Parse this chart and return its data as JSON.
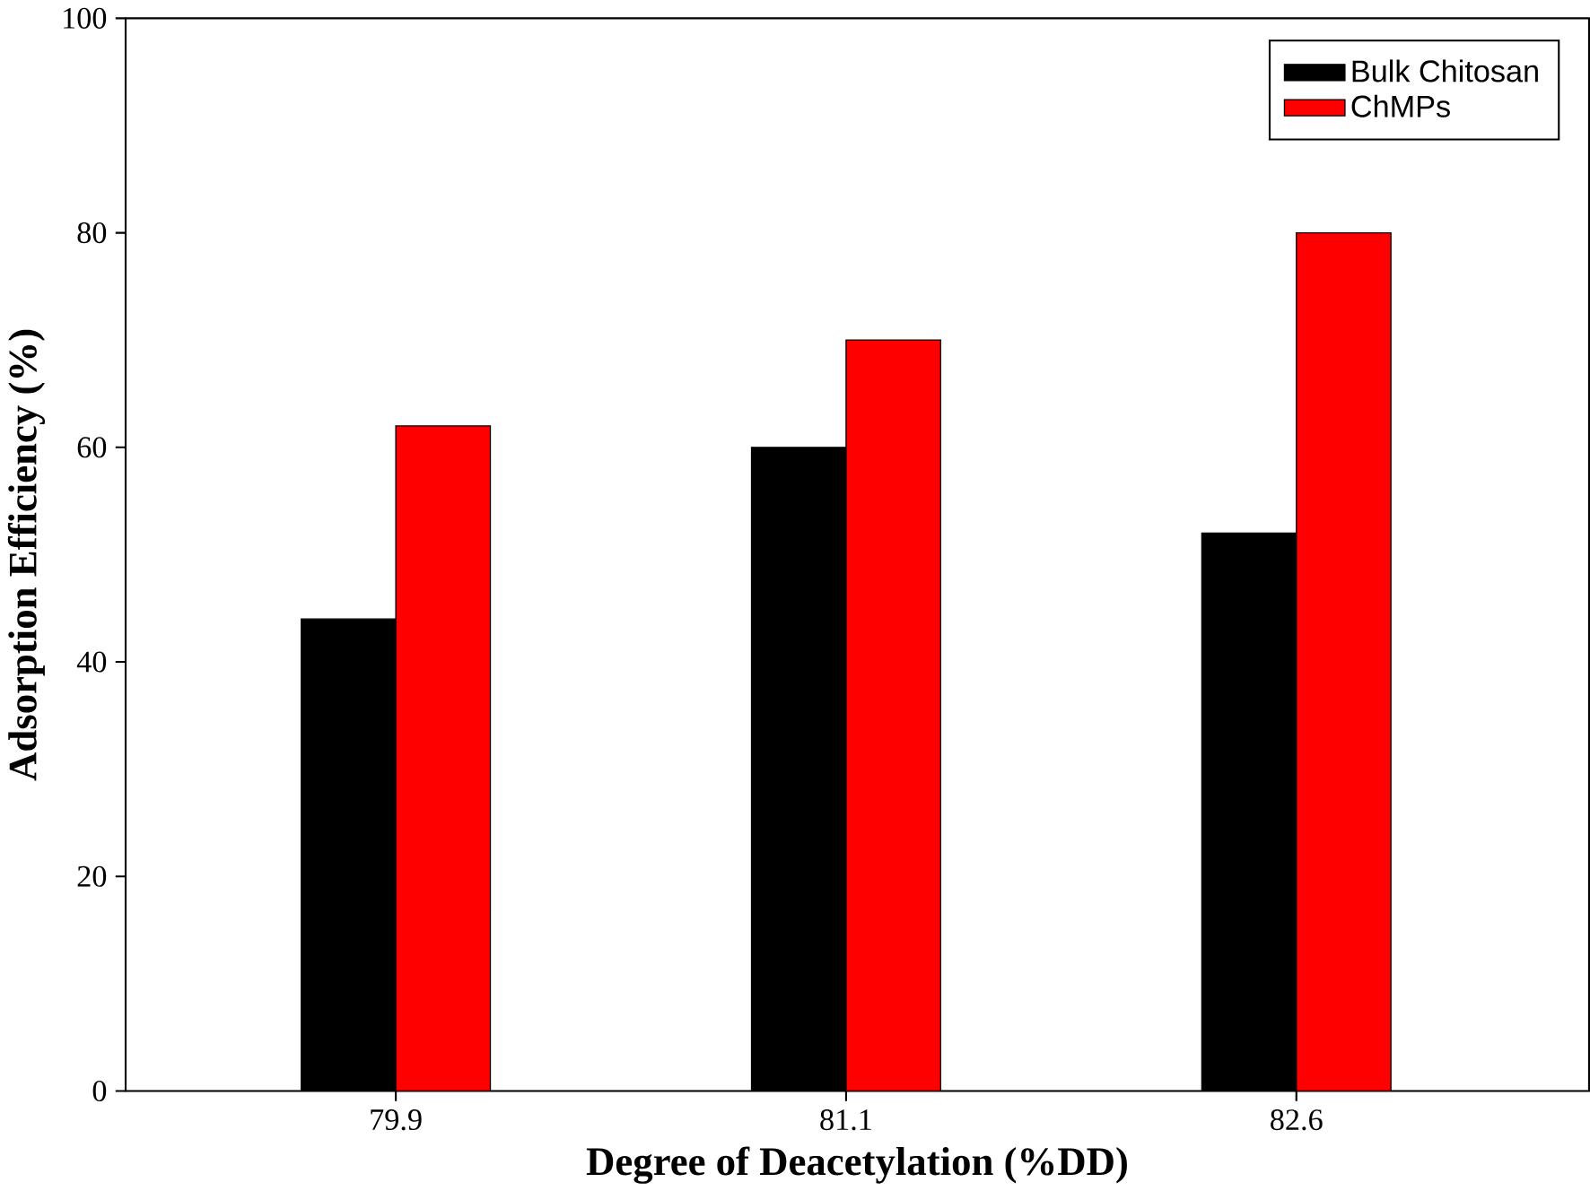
{
  "chart_data": {
    "type": "bar",
    "xlabel": "Degree of Deacetylation (%DD)",
    "ylabel": "Adsorption Efficiency (%)",
    "categories": [
      "79.9",
      "81.1",
      "82.6"
    ],
    "series": [
      {
        "name": "Bulk Chitosan",
        "color": "#000000",
        "values": [
          44,
          60,
          52
        ]
      },
      {
        "name": "ChMPs",
        "color": "#ff0000",
        "values": [
          62,
          70,
          80
        ]
      }
    ],
    "ylim": [
      0,
      100
    ],
    "yticks": [
      0,
      20,
      40,
      60,
      80,
      100
    ],
    "legend": "top right"
  }
}
